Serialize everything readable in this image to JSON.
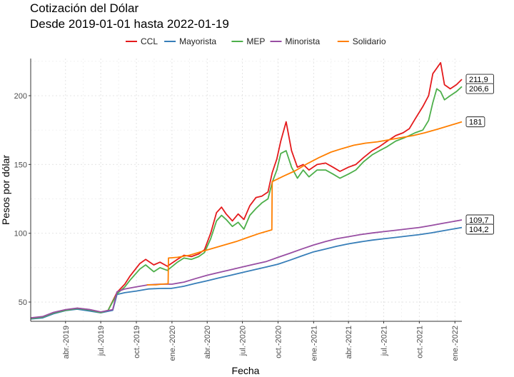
{
  "chart_data": {
    "type": "line",
    "title": "Cotización del Dólar",
    "subtitle": "Desde 2019-01-01 hasta 2022-01-19",
    "xlabel": "Fecha",
    "ylabel": "Pesos por dólar",
    "x_range": [
      "2019-01-01",
      "2022-01-19"
    ],
    "ylim": [
      36,
      227
    ],
    "y_ticks": [
      50,
      100,
      150,
      200
    ],
    "x_ticks": [
      {
        "date": "2019-04-01",
        "label": "abr.-2019"
      },
      {
        "date": "2019-07-01",
        "label": "jul.-2019"
      },
      {
        "date": "2019-10-01",
        "label": "oct.-2019"
      },
      {
        "date": "2020-01-01",
        "label": "ene.-2020"
      },
      {
        "date": "2020-04-01",
        "label": "abr.-2020"
      },
      {
        "date": "2020-07-01",
        "label": "jul.-2020"
      },
      {
        "date": "2020-10-01",
        "label": "oct.-2020"
      },
      {
        "date": "2021-01-01",
        "label": "ene.-2021"
      },
      {
        "date": "2021-04-01",
        "label": "abr.-2021"
      },
      {
        "date": "2021-07-01",
        "label": "jul.-2021"
      },
      {
        "date": "2021-10-01",
        "label": "oct.-2021"
      },
      {
        "date": "2022-01-01",
        "label": "ene.-2022"
      }
    ],
    "grid": true,
    "legend_position": "top",
    "series": [
      {
        "name": "CCL",
        "color": "#e41a1c",
        "end_label": "211,9",
        "points": [
          [
            "2019-01-01",
            38
          ],
          [
            "2019-02-01",
            39
          ],
          [
            "2019-03-01",
            42
          ],
          [
            "2019-04-01",
            44
          ],
          [
            "2019-05-01",
            45.5
          ],
          [
            "2019-06-01",
            44.5
          ],
          [
            "2019-07-01",
            42.5
          ],
          [
            "2019-07-20",
            44
          ],
          [
            "2019-08-12",
            57
          ],
          [
            "2019-09-01",
            63
          ],
          [
            "2019-09-15",
            69
          ],
          [
            "2019-10-10",
            78
          ],
          [
            "2019-10-25",
            81
          ],
          [
            "2019-11-15",
            77
          ],
          [
            "2019-12-01",
            79
          ],
          [
            "2019-12-20",
            76
          ],
          [
            "2020-01-15",
            81
          ],
          [
            "2020-02-01",
            84
          ],
          [
            "2020-02-20",
            83
          ],
          [
            "2020-03-10",
            85
          ],
          [
            "2020-03-25",
            88
          ],
          [
            "2020-04-10",
            100
          ],
          [
            "2020-04-25",
            115
          ],
          [
            "2020-05-08",
            119
          ],
          [
            "2020-05-20",
            114
          ],
          [
            "2020-06-05",
            109
          ],
          [
            "2020-06-20",
            114
          ],
          [
            "2020-07-05",
            110
          ],
          [
            "2020-07-20",
            120
          ],
          [
            "2020-08-05",
            126
          ],
          [
            "2020-08-20",
            127
          ],
          [
            "2020-09-05",
            130
          ],
          [
            "2020-09-16",
            144
          ],
          [
            "2020-09-28",
            154
          ],
          [
            "2020-10-08",
            167
          ],
          [
            "2020-10-22",
            181
          ],
          [
            "2020-11-05",
            160
          ],
          [
            "2020-11-20",
            148
          ],
          [
            "2020-12-05",
            150
          ],
          [
            "2020-12-20",
            146
          ],
          [
            "2021-01-10",
            150
          ],
          [
            "2021-02-01",
            151
          ],
          [
            "2021-02-20",
            148
          ],
          [
            "2021-03-10",
            145
          ],
          [
            "2021-04-01",
            148
          ],
          [
            "2021-04-20",
            150
          ],
          [
            "2021-05-10",
            155
          ],
          [
            "2021-06-01",
            160
          ],
          [
            "2021-06-20",
            163
          ],
          [
            "2021-07-10",
            167
          ],
          [
            "2021-08-01",
            171
          ],
          [
            "2021-08-20",
            173
          ],
          [
            "2021-09-05",
            176
          ],
          [
            "2021-09-20",
            183
          ],
          [
            "2021-10-10",
            192
          ],
          [
            "2021-10-25",
            200
          ],
          [
            "2021-11-05",
            216
          ],
          [
            "2021-11-15",
            220
          ],
          [
            "2021-11-25",
            224
          ],
          [
            "2021-12-05",
            208
          ],
          [
            "2021-12-20",
            205
          ],
          [
            "2022-01-05",
            208
          ],
          [
            "2022-01-19",
            211.9
          ]
        ]
      },
      {
        "name": "Mayorista",
        "color": "#377eb8",
        "end_label": "104,2",
        "points": [
          [
            "2019-01-01",
            37.7
          ],
          [
            "2019-02-01",
            38.5
          ],
          [
            "2019-03-01",
            41.5
          ],
          [
            "2019-04-01",
            43.8
          ],
          [
            "2019-05-01",
            44.8
          ],
          [
            "2019-06-01",
            43.5
          ],
          [
            "2019-07-01",
            42.2
          ],
          [
            "2019-08-01",
            44
          ],
          [
            "2019-08-12",
            55.5
          ],
          [
            "2019-09-01",
            56.8
          ],
          [
            "2019-10-01",
            58
          ],
          [
            "2019-11-01",
            59.5
          ],
          [
            "2019-12-01",
            59.9
          ],
          [
            "2020-01-01",
            60
          ],
          [
            "2020-02-01",
            61.5
          ],
          [
            "2020-03-01",
            63.5
          ],
          [
            "2020-04-01",
            65.5
          ],
          [
            "2020-05-01",
            67.5
          ],
          [
            "2020-06-01",
            69.5
          ],
          [
            "2020-07-01",
            71.5
          ],
          [
            "2020-08-01",
            73.5
          ],
          [
            "2020-09-01",
            75.5
          ],
          [
            "2020-10-01",
            77.5
          ],
          [
            "2020-11-01",
            80.5
          ],
          [
            "2020-12-01",
            83.5
          ],
          [
            "2021-01-01",
            86.5
          ],
          [
            "2021-02-01",
            88.5
          ],
          [
            "2021-03-01",
            90.5
          ],
          [
            "2021-04-01",
            92.3
          ],
          [
            "2021-05-01",
            93.7
          ],
          [
            "2021-06-01",
            95
          ],
          [
            "2021-07-01",
            96
          ],
          [
            "2021-08-01",
            97
          ],
          [
            "2021-09-01",
            98
          ],
          [
            "2021-10-01",
            99
          ],
          [
            "2021-11-01",
            100.3
          ],
          [
            "2021-12-01",
            101.8
          ],
          [
            "2022-01-19",
            104.2
          ]
        ]
      },
      {
        "name": "MEP",
        "color": "#4daf4a",
        "end_label": "206,6",
        "points": [
          [
            "2019-01-01",
            38
          ],
          [
            "2019-02-01",
            39
          ],
          [
            "2019-03-01",
            42
          ],
          [
            "2019-04-01",
            44
          ],
          [
            "2019-05-01",
            45.3
          ],
          [
            "2019-06-01",
            44.3
          ],
          [
            "2019-07-01",
            42.3
          ],
          [
            "2019-07-20",
            44
          ],
          [
            "2019-08-12",
            56
          ],
          [
            "2019-09-01",
            61
          ],
          [
            "2019-09-15",
            66
          ],
          [
            "2019-10-10",
            74
          ],
          [
            "2019-10-25",
            77
          ],
          [
            "2019-11-15",
            72
          ],
          [
            "2019-12-01",
            75
          ],
          [
            "2019-12-20",
            73
          ],
          [
            "2020-01-15",
            79
          ],
          [
            "2020-02-01",
            82
          ],
          [
            "2020-02-20",
            81
          ],
          [
            "2020-03-10",
            83
          ],
          [
            "2020-03-25",
            86
          ],
          [
            "2020-04-10",
            96
          ],
          [
            "2020-04-25",
            109
          ],
          [
            "2020-05-08",
            113
          ],
          [
            "2020-05-20",
            110
          ],
          [
            "2020-06-05",
            105
          ],
          [
            "2020-06-20",
            108
          ],
          [
            "2020-07-05",
            103
          ],
          [
            "2020-07-20",
            113
          ],
          [
            "2020-08-05",
            118
          ],
          [
            "2020-08-20",
            122
          ],
          [
            "2020-09-05",
            125
          ],
          [
            "2020-09-16",
            137
          ],
          [
            "2020-09-28",
            146
          ],
          [
            "2020-10-08",
            158
          ],
          [
            "2020-10-22",
            160
          ],
          [
            "2020-11-05",
            148
          ],
          [
            "2020-11-20",
            140
          ],
          [
            "2020-12-05",
            146
          ],
          [
            "2020-12-20",
            141
          ],
          [
            "2021-01-10",
            146
          ],
          [
            "2021-02-01",
            146
          ],
          [
            "2021-02-20",
            143
          ],
          [
            "2021-03-10",
            140
          ],
          [
            "2021-04-01",
            143
          ],
          [
            "2021-04-20",
            146
          ],
          [
            "2021-05-10",
            152
          ],
          [
            "2021-06-01",
            157
          ],
          [
            "2021-06-20",
            160
          ],
          [
            "2021-07-10",
            163
          ],
          [
            "2021-08-01",
            167
          ],
          [
            "2021-08-20",
            169
          ],
          [
            "2021-09-05",
            171
          ],
          [
            "2021-09-20",
            173
          ],
          [
            "2021-10-10",
            175
          ],
          [
            "2021-10-25",
            182
          ],
          [
            "2021-11-05",
            195
          ],
          [
            "2021-11-15",
            205
          ],
          [
            "2021-11-25",
            203
          ],
          [
            "2021-12-05",
            197
          ],
          [
            "2021-12-20",
            200
          ],
          [
            "2022-01-05",
            203
          ],
          [
            "2022-01-19",
            206.6
          ]
        ]
      },
      {
        "name": "Minorista",
        "color": "#984ea3",
        "end_label": "109,7",
        "points": [
          [
            "2019-01-01",
            38.5
          ],
          [
            "2019-02-01",
            39.5
          ],
          [
            "2019-03-01",
            42.5
          ],
          [
            "2019-04-01",
            44.5
          ],
          [
            "2019-05-01",
            45.6
          ],
          [
            "2019-06-01",
            44.6
          ],
          [
            "2019-07-01",
            42.8
          ],
          [
            "2019-08-01",
            44.5
          ],
          [
            "2019-08-12",
            57.5
          ],
          [
            "2019-09-01",
            59.5
          ],
          [
            "2019-10-01",
            61
          ],
          [
            "2019-11-01",
            62.5
          ],
          [
            "2019-12-01",
            63
          ],
          [
            "2020-01-01",
            63
          ],
          [
            "2020-02-01",
            64.5
          ],
          [
            "2020-03-01",
            67
          ],
          [
            "2020-04-01",
            69.5
          ],
          [
            "2020-05-01",
            71.5
          ],
          [
            "2020-06-01",
            73.5
          ],
          [
            "2020-07-01",
            75.5
          ],
          [
            "2020-08-01",
            77.5
          ],
          [
            "2020-09-01",
            79.5
          ],
          [
            "2020-10-01",
            82.5
          ],
          [
            "2020-11-01",
            85.5
          ],
          [
            "2020-12-01",
            88.5
          ],
          [
            "2021-01-01",
            91.5
          ],
          [
            "2021-02-01",
            94
          ],
          [
            "2021-03-01",
            96
          ],
          [
            "2021-04-01",
            97.5
          ],
          [
            "2021-05-01",
            99
          ],
          [
            "2021-06-01",
            100.2
          ],
          [
            "2021-07-01",
            101.2
          ],
          [
            "2021-08-01",
            102.2
          ],
          [
            "2021-09-01",
            103.2
          ],
          [
            "2021-10-01",
            104.2
          ],
          [
            "2021-11-01",
            105.7
          ],
          [
            "2021-12-01",
            107.2
          ],
          [
            "2022-01-19",
            109.7
          ]
        ]
      },
      {
        "name": "Solidario",
        "color": "#ff7f00",
        "end_label": "181",
        "points": [
          [
            "2019-10-28",
            62.5
          ],
          [
            "2019-11-20",
            62.5
          ],
          [
            "2019-12-05",
            63
          ],
          [
            "2019-12-22",
            63.3
          ],
          [
            "2019-12-23",
            82
          ],
          [
            "2020-01-15",
            82.5
          ],
          [
            "2020-02-15",
            84
          ],
          [
            "2020-03-15",
            86.5
          ],
          [
            "2020-04-15",
            89
          ],
          [
            "2020-05-15",
            91.5
          ],
          [
            "2020-06-15",
            94
          ],
          [
            "2020-07-15",
            97
          ],
          [
            "2020-08-15",
            100
          ],
          [
            "2020-09-15",
            102.5
          ],
          [
            "2020-09-16",
            137.5
          ],
          [
            "2020-10-15",
            141.5
          ],
          [
            "2020-11-15",
            145.5
          ],
          [
            "2020-12-15",
            150.5
          ],
          [
            "2021-01-15",
            155
          ],
          [
            "2021-02-15",
            159
          ],
          [
            "2021-03-15",
            161.5
          ],
          [
            "2021-04-15",
            164
          ],
          [
            "2021-05-15",
            165.5
          ],
          [
            "2021-06-15",
            166.5
          ],
          [
            "2021-07-15",
            168
          ],
          [
            "2021-08-15",
            169.5
          ],
          [
            "2021-09-15",
            171
          ],
          [
            "2021-10-15",
            173
          ],
          [
            "2021-11-15",
            175.5
          ],
          [
            "2021-12-15",
            178
          ],
          [
            "2022-01-19",
            181
          ]
        ]
      }
    ]
  }
}
